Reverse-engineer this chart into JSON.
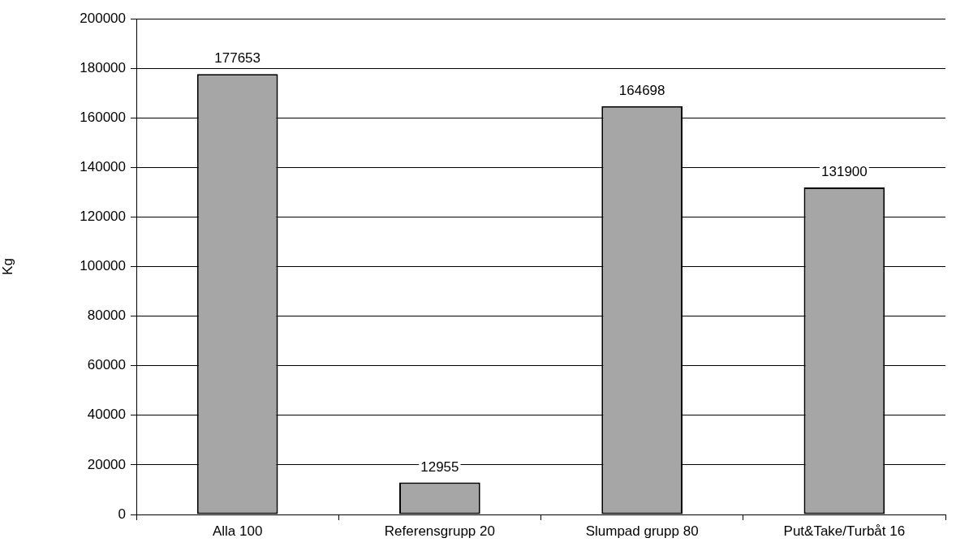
{
  "chart_data": {
    "type": "bar",
    "ylabel": "Kg",
    "categories": [
      "Alla 100",
      "Referensgrupp 20",
      "Slumpad grupp 80",
      "Put&Take/Turbåt 16"
    ],
    "values": [
      177653,
      12955,
      164698,
      131900
    ],
    "color": "#a6a6a6",
    "ylim": [
      0,
      200000
    ],
    "yticks": [
      0,
      20000,
      40000,
      60000,
      80000,
      100000,
      120000,
      140000,
      160000,
      180000,
      200000
    ],
    "grid": "y",
    "legend": false,
    "data_labels": true
  }
}
